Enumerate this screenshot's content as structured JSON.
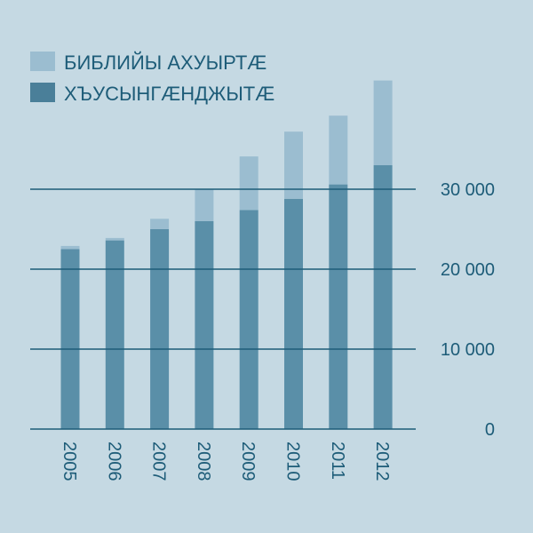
{
  "colors": {
    "background": "#c5d9e3",
    "series_light": "#9bbdd0",
    "series_dark": "#5a8fa8",
    "legend_dark": "#4a7f99",
    "axis": "#1d5c78",
    "text": "#1d5c78"
  },
  "chart_data": {
    "type": "bar",
    "stacked": true,
    "categories": [
      "2005",
      "2006",
      "2007",
      "2008",
      "2009",
      "2010",
      "2011",
      "2012"
    ],
    "series": [
      {
        "name": "ХЪУСЫНГÆНДЖЫТÆ",
        "values": [
          22500,
          23600,
          25000,
          26000,
          27400,
          28800,
          30600,
          33000
        ]
      },
      {
        "name": "БИБЛИЙЫ АХУЫРТÆ",
        "values": [
          400,
          300,
          1300,
          4000,
          6700,
          8400,
          8600,
          10600
        ]
      }
    ],
    "legend": [
      "БИБЛИЙЫ АХУЫРТÆ",
      "ХЪУСЫНГÆНДЖЫТÆ"
    ],
    "yticks": [
      0,
      10000,
      20000,
      30000
    ],
    "ytick_labels": [
      "0",
      "10 000",
      "20 000",
      "30 000"
    ],
    "ylim": [
      0,
      43600
    ],
    "y_axis_position": "right",
    "legend_position": "top-left",
    "grid": true,
    "title": "",
    "xlabel": "",
    "ylabel": ""
  }
}
